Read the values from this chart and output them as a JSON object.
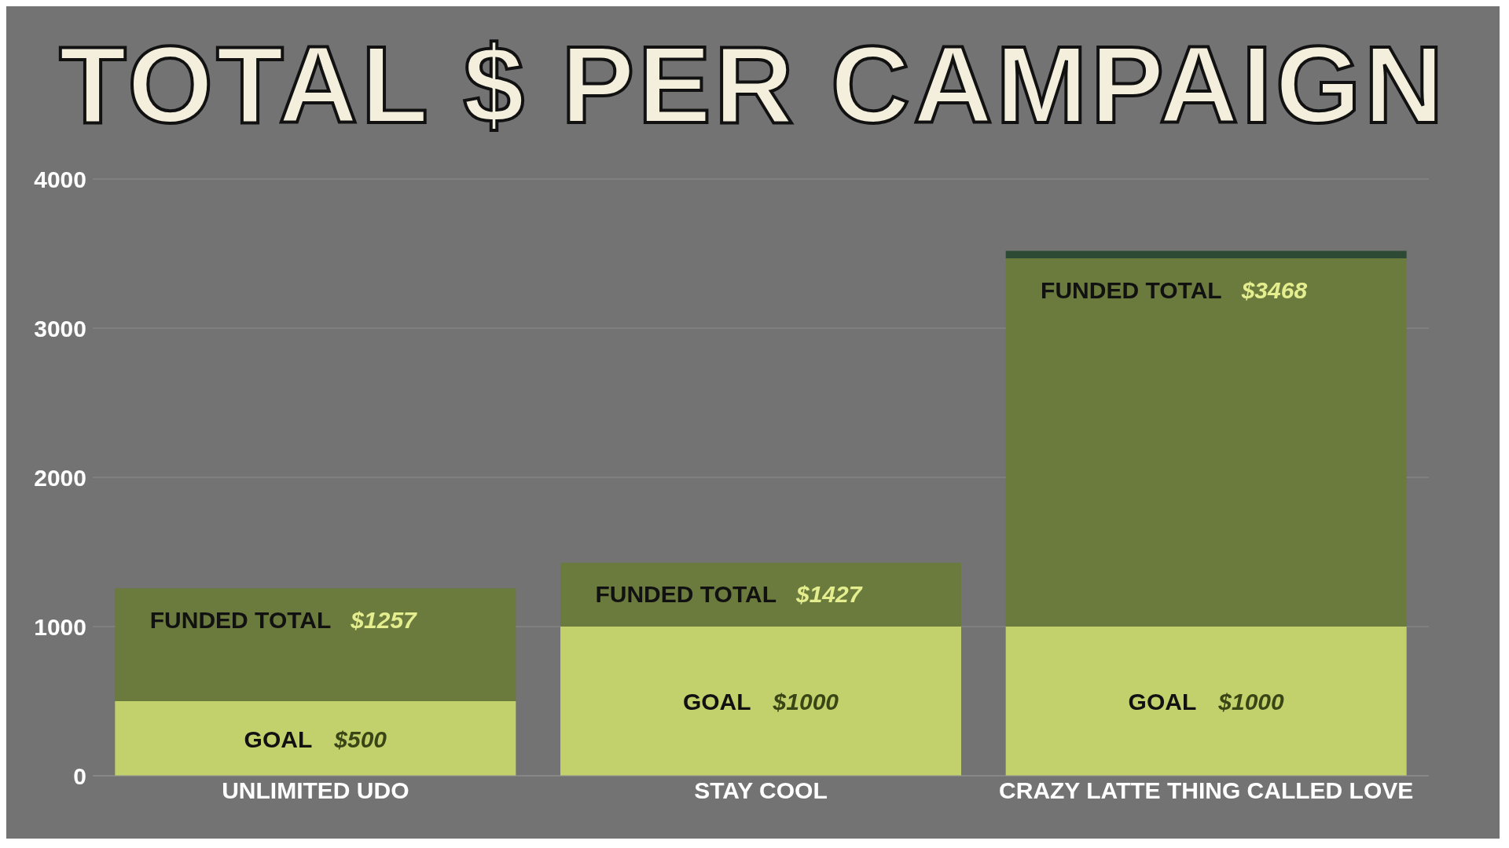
{
  "chart_data": {
    "type": "bar",
    "title": "TOTAL $ PER CAMPAIGN",
    "categories": [
      "UNLIMITED UDO",
      "STAY COOL",
      "CRAZY LATTE THING CALLED LOVE"
    ],
    "stacked": true,
    "series": [
      {
        "name": "GOAL",
        "color": "#c2d16c",
        "values": [
          500,
          1000,
          1000
        ],
        "value_labels": [
          "$500",
          "$1000",
          "$1000"
        ]
      },
      {
        "name": "FUNDED TOTAL",
        "color": "#6b7a3d",
        "values": [
          757,
          427,
          2468
        ]
      },
      {
        "color": "#2d4a35",
        "values": [
          null,
          null,
          50
        ]
      }
    ],
    "annotations": [
      {
        "text": "$1257",
        "x": "UNLIMITED UDO",
        "y": 1257
      },
      {
        "text": "$1427",
        "x": "STAY COOL",
        "y": 1427
      },
      {
        "text": "$3468",
        "x": "CRAZY LATTE THING CALLED LOVE",
        "y": 3468
      }
    ],
    "ylim": [
      0,
      4000
    ],
    "yticks": [
      0,
      1000,
      2000,
      3000,
      4000
    ],
    "grid": "y",
    "legend": false
  }
}
